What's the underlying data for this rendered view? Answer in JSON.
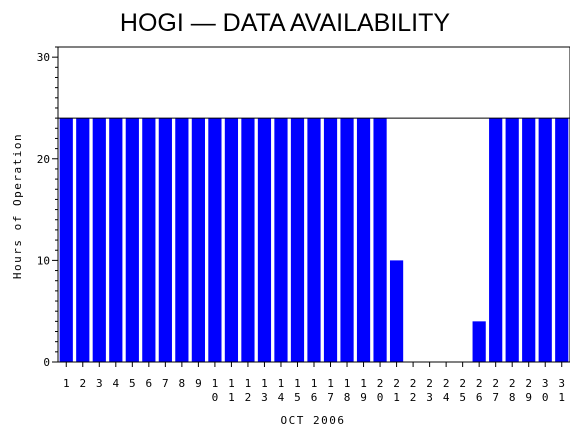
{
  "chart_data": {
    "type": "bar",
    "title": "HOGI — DATA AVAILABILITY",
    "xlabel": "OCT 2006",
    "ylabel": "Hours of Operation",
    "ylim": [
      0,
      31
    ],
    "yticks": [
      0,
      10,
      20,
      30
    ],
    "grid": false,
    "categories": [
      "1",
      "2",
      "3",
      "4",
      "5",
      "6",
      "7",
      "8",
      "9",
      "10",
      "11",
      "12",
      "13",
      "14",
      "15",
      "16",
      "17",
      "18",
      "19",
      "20",
      "21",
      "22",
      "23",
      "24",
      "25",
      "26",
      "27",
      "28",
      "29",
      "30",
      "31"
    ],
    "values": [
      24,
      24,
      24,
      24,
      24,
      24,
      24,
      24,
      24,
      24,
      24,
      24,
      24,
      24,
      24,
      24,
      24,
      24,
      24,
      24,
      10,
      0,
      0,
      0,
      0,
      4,
      24,
      24,
      24,
      24,
      24
    ],
    "bar_color": "#0000ff",
    "reference_line": 24
  }
}
